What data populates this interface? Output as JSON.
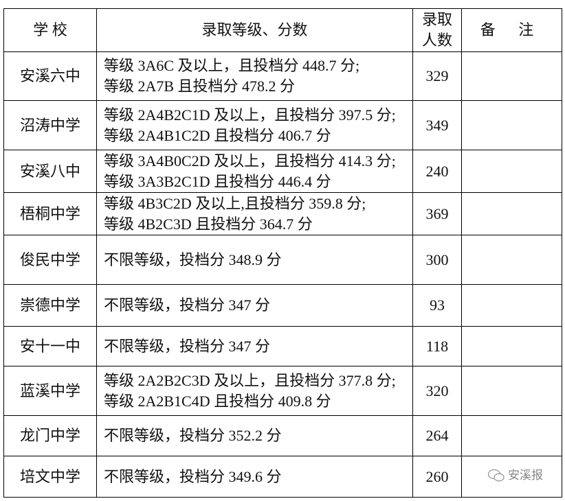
{
  "header": {
    "school": "学 校",
    "requirement": "录取等级、分数",
    "count_line1": "录取",
    "count_line2": "人数",
    "note": "备 注"
  },
  "rows": [
    {
      "school": "安溪六中",
      "lines": [
        "等级 3A6C 及以上，且投档分 448.7 分;",
        "等级 2A7B 且投档分 478.2 分"
      ],
      "count": "329",
      "note": ""
    },
    {
      "school": "沼涛中学",
      "lines": [
        "等级 2A4B2C1D 及以上，且投档分 397.5 分;",
        "等级 2A4B1C2D 且投档分 406.7 分"
      ],
      "count": "349",
      "note": ""
    },
    {
      "school": "安溪八中",
      "lines": [
        "等级 3A4B0C2D 及以上，且投档分 414.3 分;",
        "等级 3A3B2C1D 且投档分 446.4 分"
      ],
      "count": "240",
      "note": ""
    },
    {
      "school": "梧桐中学",
      "lines": [
        "等级 4B3C2D 及以上,且投档分 359.8 分;",
        "等级 4B2C3D 且投档分 364.7 分"
      ],
      "count": "369",
      "note": ""
    },
    {
      "school": "俊民中学",
      "lines": [
        "不限等级，投档分 348.9 分"
      ],
      "count": "300",
      "note": ""
    },
    {
      "school": "崇德中学",
      "lines": [
        "不限等级，投档分 347 分"
      ],
      "count": "93",
      "note": ""
    },
    {
      "school": "安十一中",
      "lines": [
        "不限等级，投档分 347 分"
      ],
      "count": "118",
      "note": ""
    },
    {
      "school": "蓝溪中学",
      "lines": [
        "等级 2A2B2C3D 及以上，且投档分 377.8 分;",
        "等级 2A2B1C4D 且投档分 409.8 分"
      ],
      "count": "320",
      "note": ""
    },
    {
      "school": "龙门中学",
      "lines": [
        "不限等级，投档分 352.2 分"
      ],
      "count": "264",
      "note": ""
    },
    {
      "school": "培文中学",
      "lines": [
        "不限等级，投档分 349.6 分"
      ],
      "count": "260",
      "note": ""
    }
  ],
  "watermark": {
    "text": "安溪报",
    "icon": "wechat-icon"
  }
}
